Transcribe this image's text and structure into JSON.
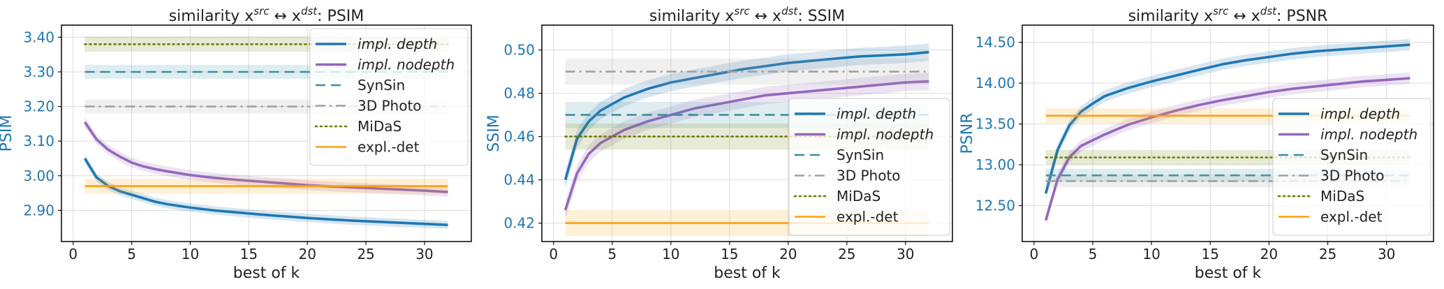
{
  "chart_data": [
    {
      "type": "line",
      "title": "similarity x^src ↔ x^dst: PSIM",
      "title_parts": {
        "prefix": "similarity x",
        "sup1": "src",
        "mid": " ↔ x",
        "sup2": "dst",
        "suffix": ": PSIM"
      },
      "xlabel": "best of k",
      "ylabel": "PSIM",
      "xlim": [
        -1,
        34
      ],
      "ylim": [
        2.81,
        3.435
      ],
      "xticks": [
        0,
        5,
        10,
        15,
        20,
        25,
        30
      ],
      "xtick_labels": [
        "0",
        "5",
        "10",
        "15",
        "20",
        "25",
        "30"
      ],
      "yticks": [
        2.9,
        3.0,
        3.1,
        3.2,
        3.3,
        3.4
      ],
      "ytick_labels": [
        "2.90",
        "3.00",
        "3.10",
        "3.20",
        "3.30",
        "3.40"
      ],
      "grid": true,
      "legend": "top-right",
      "series": [
        {
          "name": "impl. depth",
          "kind": "curve",
          "color": "#1f77b4",
          "dash": "solid",
          "x": [
            1,
            2,
            3,
            4,
            5,
            6,
            7,
            8,
            10,
            12,
            14,
            16,
            18,
            20,
            22,
            24,
            26,
            28,
            30,
            32
          ],
          "y": [
            3.05,
            2.995,
            2.97,
            2.955,
            2.945,
            2.935,
            2.925,
            2.918,
            2.908,
            2.9,
            2.894,
            2.888,
            2.883,
            2.878,
            2.874,
            2.87,
            2.867,
            2.864,
            2.861,
            2.858
          ],
          "band": 0.012
        },
        {
          "name": "impl. nodepth",
          "kind": "curve",
          "color": "#9467bd",
          "dash": "solid",
          "x": [
            1,
            2,
            3,
            4,
            5,
            6,
            7,
            8,
            10,
            12,
            14,
            16,
            18,
            20,
            22,
            24,
            26,
            28,
            30,
            32
          ],
          "y": [
            3.155,
            3.105,
            3.075,
            3.055,
            3.038,
            3.027,
            3.019,
            3.013,
            3.002,
            2.994,
            2.988,
            2.983,
            2.978,
            2.973,
            2.969,
            2.966,
            2.963,
            2.96,
            2.957,
            2.953
          ],
          "band": 0.014
        },
        {
          "name": "SynSin",
          "kind": "flat",
          "color": "#3a8fa1",
          "dash": "long",
          "x": [
            1,
            32
          ],
          "y": [
            3.3,
            3.3
          ],
          "band": 0.02
        },
        {
          "name": "3D Photo",
          "kind": "flat",
          "color": "#a0a0a0",
          "dash": "dashdot",
          "x": [
            1,
            32
          ],
          "y": [
            3.2,
            3.2
          ],
          "band": 0.02
        },
        {
          "name": "MiDaS",
          "kind": "flat",
          "color": "#6b7a00",
          "dash": "dot",
          "x": [
            1,
            32
          ],
          "y": [
            3.38,
            3.38
          ],
          "band": 0.022
        },
        {
          "name": "expl.-det",
          "kind": "flat",
          "color": "#ff9f0e",
          "dash": "solid",
          "x": [
            1,
            32
          ],
          "y": [
            2.97,
            2.97
          ],
          "band": 0.022
        }
      ]
    },
    {
      "type": "line",
      "title": "similarity x^src ↔ x^dst: SSIM",
      "title_parts": {
        "prefix": "similarity x",
        "sup1": "src",
        "mid": " ↔ x",
        "sup2": "dst",
        "suffix": ": SSIM"
      },
      "xlabel": "best of k",
      "ylabel": "SSIM",
      "xlim": [
        -1,
        34
      ],
      "ylim": [
        0.4115,
        0.5115
      ],
      "xticks": [
        0,
        5,
        10,
        15,
        20,
        25,
        30
      ],
      "xtick_labels": [
        "0",
        "5",
        "10",
        "15",
        "20",
        "25",
        "30"
      ],
      "yticks": [
        0.42,
        0.44,
        0.46,
        0.48,
        0.5
      ],
      "ytick_labels": [
        "0.42",
        "0.44",
        "0.46",
        "0.48",
        "0.50"
      ],
      "grid": true,
      "legend": "lower-right",
      "series": [
        {
          "name": "impl. depth",
          "kind": "curve",
          "color": "#1f77b4",
          "dash": "solid",
          "x": [
            1,
            2,
            3,
            4,
            5,
            6,
            7,
            8,
            10,
            12,
            14,
            16,
            18,
            20,
            22,
            24,
            26,
            28,
            30,
            32
          ],
          "y": [
            0.44,
            0.459,
            0.467,
            0.472,
            0.475,
            0.478,
            0.48,
            0.482,
            0.485,
            0.487,
            0.489,
            0.491,
            0.4925,
            0.494,
            0.495,
            0.496,
            0.497,
            0.4975,
            0.498,
            0.499
          ],
          "band": 0.004
        },
        {
          "name": "impl. nodepth",
          "kind": "curve",
          "color": "#9467bd",
          "dash": "solid",
          "x": [
            1,
            2,
            3,
            4,
            5,
            6,
            7,
            8,
            10,
            12,
            14,
            16,
            18,
            20,
            22,
            24,
            26,
            28,
            30,
            32
          ],
          "y": [
            0.426,
            0.443,
            0.452,
            0.457,
            0.46,
            0.463,
            0.465,
            0.467,
            0.47,
            0.473,
            0.475,
            0.477,
            0.479,
            0.48,
            0.481,
            0.482,
            0.483,
            0.484,
            0.485,
            0.4855
          ],
          "band": 0.004
        },
        {
          "name": "SynSin",
          "kind": "flat",
          "color": "#3a8fa1",
          "dash": "long",
          "x": [
            1,
            32
          ],
          "y": [
            0.47,
            0.47
          ],
          "band": 0.006
        },
        {
          "name": "3D Photo",
          "kind": "flat",
          "color": "#a0a0a0",
          "dash": "dashdot",
          "x": [
            1,
            32
          ],
          "y": [
            0.49,
            0.49
          ],
          "band": 0.006
        },
        {
          "name": "MiDaS",
          "kind": "flat",
          "color": "#6b7a00",
          "dash": "dot",
          "x": [
            1,
            32
          ],
          "y": [
            0.46,
            0.46
          ],
          "band": 0.006
        },
        {
          "name": "expl.-det",
          "kind": "flat",
          "color": "#ff9f0e",
          "dash": "solid",
          "x": [
            1,
            32
          ],
          "y": [
            0.42,
            0.42
          ],
          "band": 0.006
        }
      ]
    },
    {
      "type": "line",
      "title": "similarity x^src ↔ x^dst: PSNR",
      "title_parts": {
        "prefix": "similarity x",
        "sup1": "src",
        "mid": " ↔ x",
        "sup2": "dst",
        "suffix": ": PSNR"
      },
      "xlabel": "best of k",
      "ylabel": "PSNR",
      "xlim": [
        -1,
        34
      ],
      "ylim": [
        12.06,
        14.71
      ],
      "xticks": [
        0,
        5,
        10,
        15,
        20,
        25,
        30
      ],
      "xtick_labels": [
        "0",
        "5",
        "10",
        "15",
        "20",
        "25",
        "30"
      ],
      "yticks": [
        12.5,
        13.0,
        13.5,
        14.0,
        14.5
      ],
      "ytick_labels": [
        "12.50",
        "13.00",
        "13.50",
        "14.00",
        "14.50"
      ],
      "grid": true,
      "legend": "lower-right",
      "series": [
        {
          "name": "impl. depth",
          "kind": "curve",
          "color": "#1f77b4",
          "dash": "solid",
          "x": [
            1,
            2,
            3,
            4,
            5,
            6,
            7,
            8,
            10,
            12,
            14,
            16,
            18,
            20,
            22,
            24,
            26,
            28,
            30,
            32
          ],
          "y": [
            12.65,
            13.18,
            13.48,
            13.65,
            13.75,
            13.84,
            13.89,
            13.94,
            14.02,
            14.09,
            14.16,
            14.23,
            14.28,
            14.32,
            14.36,
            14.39,
            14.41,
            14.43,
            14.45,
            14.47
          ],
          "band": 0.07
        },
        {
          "name": "impl. nodepth",
          "kind": "curve",
          "color": "#9467bd",
          "dash": "solid",
          "x": [
            1,
            2,
            3,
            4,
            5,
            6,
            7,
            8,
            10,
            12,
            14,
            16,
            18,
            20,
            22,
            24,
            26,
            28,
            30,
            32
          ],
          "y": [
            12.32,
            12.82,
            13.09,
            13.23,
            13.3,
            13.37,
            13.43,
            13.49,
            13.58,
            13.66,
            13.73,
            13.79,
            13.84,
            13.89,
            13.93,
            13.96,
            13.99,
            14.02,
            14.04,
            14.06
          ],
          "band": 0.07
        },
        {
          "name": "SynSin",
          "kind": "flat",
          "color": "#3a8fa1",
          "dash": "long",
          "x": [
            1,
            32
          ],
          "y": [
            12.87,
            12.87
          ],
          "band": 0.08
        },
        {
          "name": "3D Photo",
          "kind": "flat",
          "color": "#a0a0a0",
          "dash": "dashdot",
          "x": [
            1,
            32
          ],
          "y": [
            12.8,
            12.8
          ],
          "band": 0.08
        },
        {
          "name": "MiDaS",
          "kind": "flat",
          "color": "#6b7a00",
          "dash": "dot",
          "x": [
            1,
            32
          ],
          "y": [
            13.09,
            13.09
          ],
          "band": 0.09
        },
        {
          "name": "expl.-det",
          "kind": "flat",
          "color": "#ff9f0e",
          "dash": "solid",
          "x": [
            1,
            32
          ],
          "y": [
            13.6,
            13.6
          ],
          "band": 0.09
        }
      ]
    }
  ]
}
